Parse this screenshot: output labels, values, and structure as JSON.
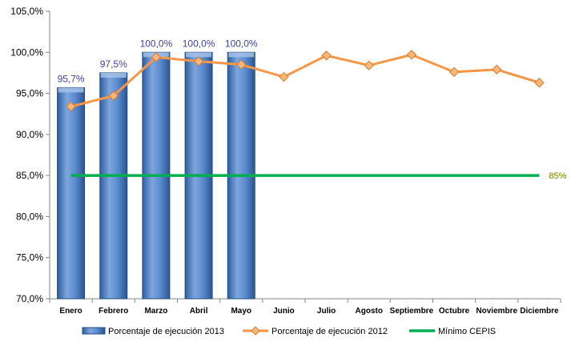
{
  "chart_data": {
    "type": "bar",
    "categories": [
      "Enero",
      "Febrero",
      "Marzo",
      "Abril",
      "Mayo",
      "Junio",
      "Julio",
      "Agosto",
      "Septiembre",
      "Octubre",
      "Noviembre",
      "Diciembre"
    ],
    "series": [
      {
        "name": "Porcentaje de ejecución 2013",
        "type": "bar",
        "values": [
          95.7,
          97.5,
          100.0,
          100.0,
          100.0,
          null,
          null,
          null,
          null,
          null,
          null,
          null
        ],
        "data_labels": [
          "95,7%",
          "97,5%",
          "100,0%",
          "100,0%",
          "100,0%"
        ],
        "color": "#4a7ebf"
      },
      {
        "name": "Porcentaje de ejecución 2012",
        "type": "line",
        "values": [
          93.4,
          94.7,
          99.4,
          98.9,
          98.5,
          97.0,
          99.6,
          98.4,
          99.7,
          97.6,
          97.9,
          96.3
        ],
        "color": "#f79646"
      },
      {
        "name": "Mínimo CEPIS",
        "type": "line",
        "values": [
          85,
          85,
          85,
          85,
          85,
          85,
          85,
          85,
          85,
          85,
          85,
          85
        ],
        "end_label": "85%",
        "color": "#00b050"
      }
    ],
    "ylim": [
      70,
      105
    ],
    "yticks": [
      "70,0%",
      "75,0%",
      "80,0%",
      "85,0%",
      "90,0%",
      "95,0%",
      "100,0%",
      "105,0%"
    ],
    "ytick_values": [
      70,
      75,
      80,
      85,
      90,
      95,
      100,
      105
    ],
    "legend_position": "bottom",
    "grid": false
  },
  "colors": {
    "bar_label": "#3f3f9f",
    "min_label": "#7f7f00",
    "axis": "#868686"
  }
}
